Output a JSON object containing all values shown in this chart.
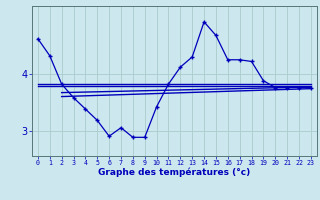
{
  "background_color": "#cce8ee",
  "grid_color": "#aacccc",
  "line_color": "#0000bb",
  "x_ticks": [
    0,
    1,
    2,
    3,
    4,
    5,
    6,
    7,
    8,
    9,
    10,
    11,
    12,
    13,
    14,
    15,
    16,
    17,
    18,
    19,
    20,
    21,
    22,
    23
  ],
  "xlabel": "Graphe des températures (°c)",
  "y_ticks": [
    3,
    4
  ],
  "ylim": [
    2.55,
    5.2
  ],
  "xlim": [
    -0.5,
    23.5
  ],
  "temp_curve": [
    4.62,
    4.32,
    3.82,
    3.58,
    3.38,
    3.18,
    2.9,
    3.05,
    2.88,
    2.88,
    3.42,
    3.82,
    4.12,
    4.3,
    4.92,
    4.68,
    4.25,
    4.25,
    4.22,
    3.88,
    3.76,
    3.76,
    3.76,
    3.76
  ],
  "ref_lines": [
    {
      "x0": 0,
      "x1": 23,
      "y0": 3.82,
      "y1": 3.82
    },
    {
      "x0": 0,
      "x1": 23,
      "y0": 3.79,
      "y1": 3.79
    },
    {
      "x0": 2,
      "x1": 23,
      "y0": 3.67,
      "y1": 3.77
    },
    {
      "x0": 2,
      "x1": 23,
      "y0": 3.6,
      "y1": 3.74
    }
  ]
}
